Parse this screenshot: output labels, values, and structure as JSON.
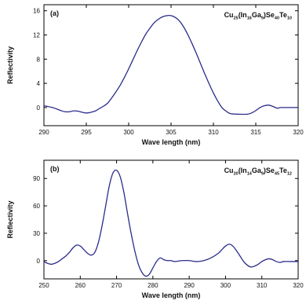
{
  "chart_data": [
    {
      "type": "line",
      "panel_label": "(a)",
      "title": {
        "parts": [
          {
            "text": "Cu",
            "sub": false
          },
          {
            "text": "25",
            "sub": true
          },
          {
            "text": "(In",
            "sub": false
          },
          {
            "text": "16",
            "sub": true
          },
          {
            "text": "Ga",
            "sub": false
          },
          {
            "text": "9",
            "sub": true
          },
          {
            "text": ")Se",
            "sub": false
          },
          {
            "text": "40",
            "sub": true
          },
          {
            "text": "Te",
            "sub": false
          },
          {
            "text": "10",
            "sub": true
          }
        ]
      },
      "xlabel": "Wave length (nm)",
      "ylabel": "Reflectivity",
      "xlim": [
        290,
        320
      ],
      "ylim": [
        -3,
        17
      ],
      "xticks": [
        290,
        295,
        300,
        305,
        310,
        315,
        320
      ],
      "yticks": [
        0,
        4,
        8,
        12,
        16
      ],
      "grid": false,
      "line_color": "#2b2b8c",
      "series": [
        {
          "x": [
            290,
            291,
            292,
            292.5,
            293,
            293.5,
            294,
            295,
            296,
            296.5,
            297,
            297.5,
            298,
            298.5,
            299,
            299.5,
            300,
            300.5,
            301,
            301.5,
            302,
            302.5,
            303,
            303.5,
            304,
            304.5,
            305,
            305.5,
            306,
            306.5,
            307,
            307.5,
            308,
            308.5,
            309,
            309.5,
            310,
            310.5,
            311,
            311.5,
            312,
            313,
            314,
            314.5,
            315,
            315.5,
            316,
            316.5,
            317,
            317.5,
            318,
            319,
            320
          ],
          "y": [
            0.3,
            0.0,
            -0.5,
            -0.7,
            -0.7,
            -0.55,
            -0.6,
            -0.9,
            -0.6,
            -0.2,
            0.2,
            0.7,
            1.6,
            2.6,
            3.7,
            5.0,
            6.4,
            7.9,
            9.4,
            10.8,
            12.1,
            13.1,
            14.0,
            14.6,
            15.0,
            15.2,
            15.2,
            14.9,
            14.3,
            13.3,
            12.0,
            10.5,
            8.9,
            7.2,
            5.5,
            3.9,
            2.4,
            1.1,
            0.0,
            -0.6,
            -1.0,
            -1.1,
            -1.1,
            -0.9,
            -0.5,
            0.0,
            0.3,
            0.4,
            0.2,
            -0.1,
            0.0,
            0.0,
            0.0
          ]
        }
      ]
    },
    {
      "type": "line",
      "panel_label": "(b)",
      "title": {
        "parts": [
          {
            "text": "Cu",
            "sub": false
          },
          {
            "text": "20",
            "sub": true
          },
          {
            "text": "(In",
            "sub": false
          },
          {
            "text": "14",
            "sub": true
          },
          {
            "text": "Ga",
            "sub": false
          },
          {
            "text": "9",
            "sub": true
          },
          {
            "text": ")Se",
            "sub": false
          },
          {
            "text": "45",
            "sub": true
          },
          {
            "text": "Te",
            "sub": false
          },
          {
            "text": "12",
            "sub": true
          }
        ]
      },
      "xlabel": "Wave length (nm)",
      "ylabel": "Reflectivity",
      "xlim": [
        250,
        320
      ],
      "ylim": [
        -20,
        110
      ],
      "xticks": [
        250,
        260,
        270,
        280,
        290,
        300,
        310,
        320
      ],
      "yticks": [
        0,
        30,
        60,
        90
      ],
      "grid": false,
      "line_color": "#2b2b8c",
      "series": [
        {
          "x": [
            250,
            251,
            252,
            253,
            254,
            255,
            256,
            257,
            258,
            259,
            260,
            261,
            262,
            263,
            264,
            265,
            266,
            267,
            268,
            269,
            270,
            271,
            272,
            273,
            274,
            275,
            276,
            277,
            278,
            279,
            280,
            281,
            282,
            283,
            284,
            285,
            286,
            288,
            290,
            292,
            294,
            296,
            298,
            299,
            300,
            301,
            302,
            303,
            304,
            305,
            306,
            307,
            308,
            309,
            310,
            311,
            312,
            313,
            314,
            315,
            316,
            318,
            320
          ],
          "y": [
            -1,
            -3,
            -4,
            -3,
            -1,
            2,
            5,
            9,
            14,
            17,
            16,
            12,
            8,
            6,
            9,
            20,
            38,
            60,
            82,
            96,
            99,
            92,
            75,
            52,
            30,
            11,
            -4,
            -13,
            -17,
            -15,
            -8,
            -1,
            3,
            1,
            0,
            0,
            -1,
            0,
            0,
            -1,
            0,
            3,
            8,
            12,
            16,
            18,
            16,
            11,
            5,
            -1,
            -5,
            -7,
            -6,
            -4,
            -1,
            1,
            2,
            1,
            -1,
            -2,
            -1,
            -1,
            -1
          ]
        }
      ]
    }
  ]
}
